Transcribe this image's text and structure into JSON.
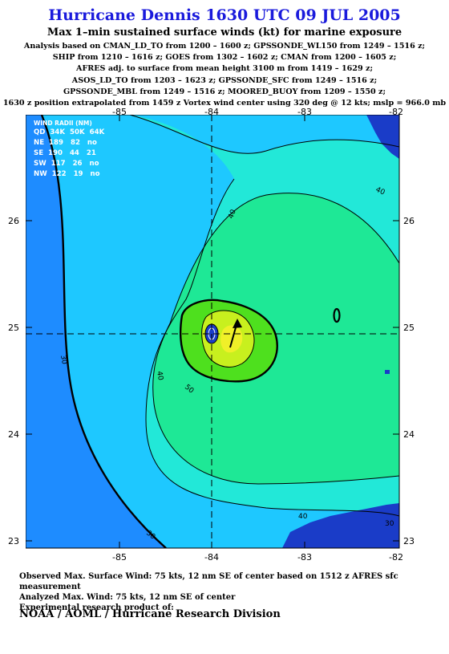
{
  "title": "Hurricane Dennis 1630 UTC 09 JUL 2005",
  "subtitle": "Max 1–min sustained surface winds (kt) for marine exposure",
  "analysis_lines": [
    "Analysis based on  CMAN_LD_TO from 1200 – 1600 z;  GPSSONDE_WL150 from 1249 – 1516 z;",
    "SHIP from 1210 – 1616 z;  GOES from 1302 – 1602 z;  CMAN from 1200 – 1605 z;",
    "AFRES adj. to surface from mean height 3100 m from 1419 – 1629 z;",
    "ASOS_LD_TO from 1203 – 1623 z;  GPSSONDE_SFC from 1249 – 1516 z;",
    "GPSSONDE_MBL from 1249 – 1516 z;  MOORED_BUOY from 1209 – 1550 z;",
    "1630 z position extrapolated from 1459 z Vortex wind center using 320 deg @ 12 kts; mslp = 966.0 mb"
  ],
  "map": {
    "lon_ticks": [
      "-85",
      "-84",
      "-83",
      "-82"
    ],
    "lat_ticks": [
      "26",
      "25",
      "24",
      "23"
    ],
    "contour_labels": [
      "40",
      "40",
      "30",
      "40",
      "50",
      "40",
      "30",
      "30"
    ],
    "colors": {
      "outer": "#1e8cff",
      "band30": "#1ec8ff",
      "band40": "#22e8d8",
      "band50": "#1ee896",
      "band60": "#4ee01e",
      "band70": "#c8f01e",
      "band75": "#f0f028",
      "land": "#1a3cc8"
    }
  },
  "wind_radii": {
    "title": "WIND RADII (NM)",
    "header": "QD  34K  50K  64K",
    "rows": [
      "NE  189   82   no",
      "SE  190   44   21",
      "SW  117   26   no",
      "NW  122   19   no"
    ]
  },
  "bottom_lines": [
    "Observed Max. Surface Wind: 75 kts, 12 nm SE of center based on 1512 z AFRES sfc measurement",
    "Analyzed Max. Wind: 75 kts, 12 nm SE of center",
    "Experimental research product of:"
  ],
  "footer": "NOAA / AOML / Hurricane Research Division"
}
